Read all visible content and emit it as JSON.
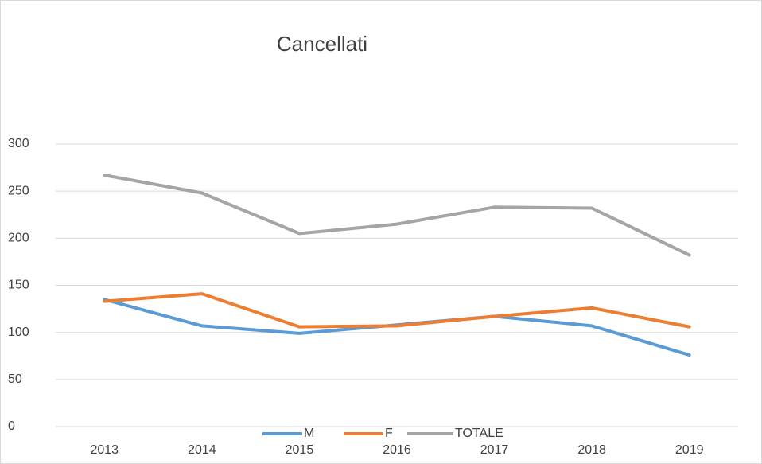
{
  "chart_data": {
    "type": "line",
    "title": "Cancellati",
    "categories": [
      "2013",
      "2014",
      "2015",
      "2016",
      "2017",
      "2018",
      "2019"
    ],
    "series": [
      {
        "name": "M",
        "color": "#5b9bd5",
        "values": [
          135,
          107,
          99,
          108,
          117,
          107,
          76
        ]
      },
      {
        "name": "F",
        "color": "#ed7d31",
        "values": [
          133,
          141,
          106,
          107,
          117,
          126,
          106
        ]
      },
      {
        "name": "TOTALE",
        "color": "#a5a5a5",
        "values": [
          267,
          248,
          205,
          215,
          233,
          232,
          182
        ]
      }
    ],
    "ylim": [
      0,
      300
    ],
    "yticks": [
      0,
      50,
      100,
      150,
      200,
      250,
      300
    ],
    "grid": true,
    "legend": "bottom"
  }
}
